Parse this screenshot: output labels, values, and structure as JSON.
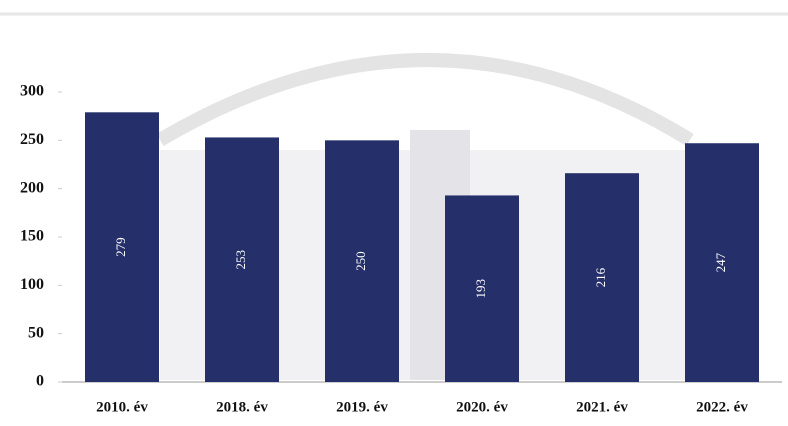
{
  "chart_data": {
    "type": "bar",
    "categories": [
      "2010. év",
      "2018. év",
      "2019. év",
      "2020. év",
      "2021. év",
      "2022. év"
    ],
    "values": [
      279,
      253,
      250,
      193,
      216,
      247
    ],
    "color": "#25306a",
    "ylim": [
      0,
      300
    ],
    "yticks": [
      0,
      50,
      100,
      150,
      200,
      250,
      300
    ]
  }
}
